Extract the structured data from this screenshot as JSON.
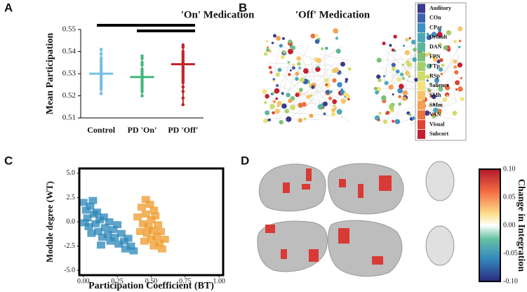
{
  "panel_labels": [
    "A",
    "B",
    "C",
    "D"
  ],
  "chart_data": [
    {
      "type": "strip",
      "y_label": "Mean Participation",
      "categories": [
        "Control",
        "PD 'On'",
        "PD 'Off'"
      ],
      "colors": [
        "#74bfe6",
        "#42b77c",
        "#c0262d"
      ],
      "values": [
        0.53,
        0.5285,
        0.5343
      ],
      "points": [
        [
          0.541,
          0.539,
          0.537,
          0.536,
          0.535,
          0.534,
          0.533,
          0.532,
          0.531,
          0.53,
          0.529,
          0.528,
          0.527,
          0.526,
          0.525,
          0.524,
          0.523,
          0.521
        ],
        [
          0.538,
          0.537,
          0.535,
          0.534,
          0.532,
          0.531,
          0.53,
          0.529,
          0.528,
          0.527,
          0.526,
          0.525,
          0.524,
          0.523,
          0.522,
          0.52
        ],
        [
          0.543,
          0.542,
          0.54,
          0.539,
          0.538,
          0.537,
          0.536,
          0.535,
          0.534,
          0.533,
          0.532,
          0.531,
          0.53,
          0.529,
          0.528,
          0.527,
          0.526,
          0.524,
          0.522,
          0.519,
          0.516
        ]
      ],
      "ylim": [
        0.51,
        0.55
      ],
      "yticks": [
        0.51,
        0.52,
        0.53,
        0.54,
        0.55
      ]
    },
    {
      "type": "scatter",
      "x_label": "Participation Coefficient (BT)",
      "y_label": "Module degree (WT)",
      "xlim": [
        -0.03,
        1.03
      ],
      "ylim": [
        -5.5,
        5.5
      ],
      "xticks": [
        {
          "value": 0,
          "label": "0.00"
        },
        {
          "value": 0.25,
          "label": "0.25"
        },
        {
          "value": 0.5,
          "label": "0.50"
        },
        {
          "value": 0.75,
          "label": "0.75"
        },
        {
          "value": 1,
          "label": "1.00"
        }
      ],
      "yticks": [
        {
          "value": 5,
          "label": "5.0"
        },
        {
          "value": 2.5,
          "label": "2.5"
        },
        {
          "value": 0,
          "label": "0.0"
        },
        {
          "value": -2.5,
          "label": "-2.5"
        },
        {
          "value": -5,
          "label": "-5.0"
        }
      ],
      "series": [
        {
          "color": "#2a86b8",
          "x": [
            0.0,
            0.02,
            0.03,
            0.04,
            0.05,
            0.06,
            0.08,
            0.09,
            0.1,
            0.11,
            0.12,
            0.14,
            0.15,
            0.16,
            0.18,
            0.19,
            0.2,
            0.22,
            0.23,
            0.25,
            0.26,
            0.28,
            0.3,
            0.31,
            0.33,
            0.35,
            0.37,
            0.01,
            0.07,
            0.13
          ],
          "values": [
            2.0,
            1.2,
            0.4,
            -0.5,
            1.6,
            -1.2,
            0.8,
            -0.2,
            1.0,
            -1.0,
            0.2,
            -1.6,
            0.5,
            -0.6,
            -1.3,
            0.0,
            -2.0,
            -0.8,
            -1.6,
            -0.3,
            -2.3,
            -1.2,
            -2.0,
            -2.8,
            -1.7,
            -2.5,
            -3.0,
            -0.1,
            2.2,
            -2.4
          ]
        },
        {
          "color": "#ef9a2a",
          "x": [
            0.4,
            0.42,
            0.43,
            0.44,
            0.45,
            0.46,
            0.47,
            0.48,
            0.49,
            0.5,
            0.5,
            0.51,
            0.52,
            0.53,
            0.54,
            0.55,
            0.56,
            0.57,
            0.58,
            0.6,
            0.46,
            0.52
          ],
          "values": [
            0.5,
            -1.0,
            1.5,
            -0.2,
            -2.0,
            0.8,
            -1.2,
            -0.5,
            1.8,
            -1.8,
            0.2,
            -0.9,
            -2.5,
            0.6,
            -1.5,
            -0.3,
            -2.2,
            -1.0,
            -2.8,
            -1.8,
            2.3,
            1.2
          ]
        }
      ]
    }
  ],
  "network_panel": {
    "titles": [
      "'On' Medication",
      "'Off' Medication"
    ],
    "legend": [
      {
        "name": "Auditory",
        "color": "#3b3a8c"
      },
      {
        "name": "COn",
        "color": "#3e63ad"
      },
      {
        "name": "CPar",
        "color": "#3f8ec4"
      },
      {
        "name": "Default",
        "color": "#4aa8b8"
      },
      {
        "name": "DAN",
        "color": "#5bb59a"
      },
      {
        "name": "FPN",
        "color": "#7cc07a"
      },
      {
        "name": "FTp",
        "color": "#a6cf6b"
      },
      {
        "name": "RSp",
        "color": "#cfdc6e"
      },
      {
        "name": "Salience",
        "color": "#f3e27a"
      },
      {
        "name": "SMh",
        "color": "#f8c46a"
      },
      {
        "name": "SMm",
        "color": "#f5a054"
      },
      {
        "name": "VAN",
        "color": "#ec7440"
      },
      {
        "name": "Visual",
        "color": "#dc4533"
      },
      {
        "name": "Subcort",
        "color": "#c51f35"
      }
    ]
  },
  "brain_panel": {
    "colorbar_label": "Change in Integration",
    "colorbar_ticks": [
      "0.10",
      "0.05",
      "0.00",
      "-0.05",
      "-0.10"
    ]
  }
}
